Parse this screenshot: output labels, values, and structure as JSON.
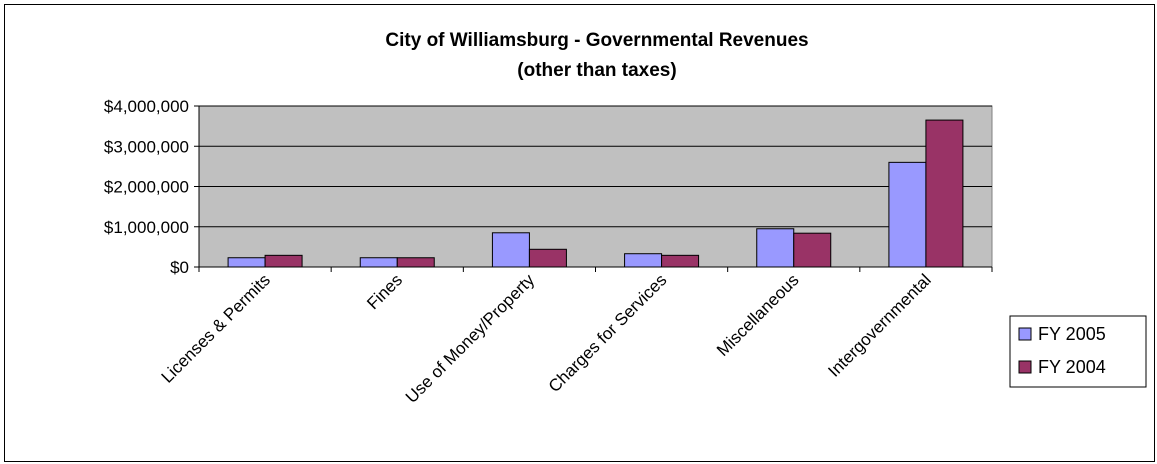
{
  "chart_data": {
    "type": "bar",
    "title": [
      "City of Williamsburg - Governmental Revenues",
      "(other than taxes)"
    ],
    "categories": [
      "Licenses & Permits",
      "Fines",
      "Use of Money/Property",
      "Charges for Services",
      "Miscellaneous",
      "Intergovernmental"
    ],
    "series": [
      {
        "name": "FY 2005",
        "color": "#9999FF",
        "values": [
          230000,
          230000,
          850000,
          330000,
          950000,
          2600000
        ]
      },
      {
        "name": "FY 2004",
        "color": "#993366",
        "values": [
          290000,
          230000,
          440000,
          290000,
          840000,
          3650000
        ]
      }
    ],
    "ylim": [
      0,
      4000000
    ],
    "yticks": [
      0,
      1000000,
      2000000,
      3000000,
      4000000
    ],
    "ytick_labels": [
      "$0",
      "$1,000,000",
      "$2,000,000",
      "$3,000,000",
      "$4,000,000"
    ],
    "plot_background": "#C0C0C0",
    "grid": true,
    "legend_position": "right"
  }
}
